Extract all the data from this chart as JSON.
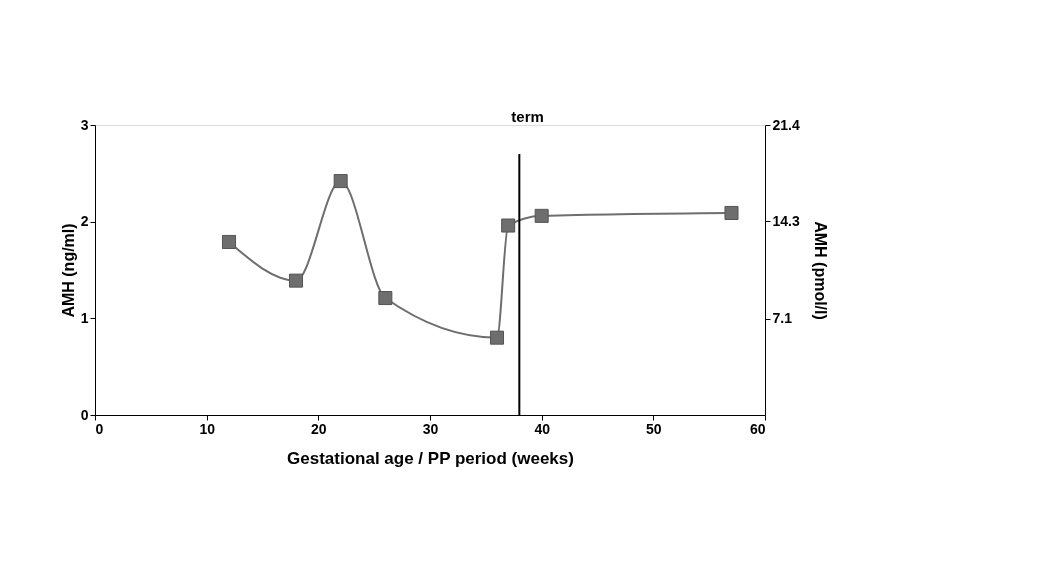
{
  "chart_data": {
    "type": "line",
    "xlabel": "Gestational age / PP period (weeks)",
    "ylabel": "AMH (ng/ml)",
    "y2label": "AMH (pmol/l)",
    "x": [
      12,
      18,
      22,
      26,
      36,
      37,
      40,
      57
    ],
    "series": [
      {
        "color": "#6e6e6e",
        "values": [
          1.79,
          1.39,
          2.42,
          1.21,
          0.8,
          1.96,
          2.06,
          2.09
        ]
      }
    ],
    "xlim": [
      0,
      60
    ],
    "xticks": [
      0,
      10,
      20,
      30,
      40,
      50,
      60
    ],
    "ylim": [
      0,
      3
    ],
    "yticks": [
      0,
      1,
      2,
      3
    ],
    "y2lim": [
      0,
      21.4
    ],
    "y2ticks": [
      7.1,
      14.3,
      21.4
    ],
    "ref_lines": [
      {
        "axis": "x",
        "value": 38,
        "label": "term",
        "color": "#000000"
      }
    ],
    "marker": "square",
    "grid": false
  }
}
